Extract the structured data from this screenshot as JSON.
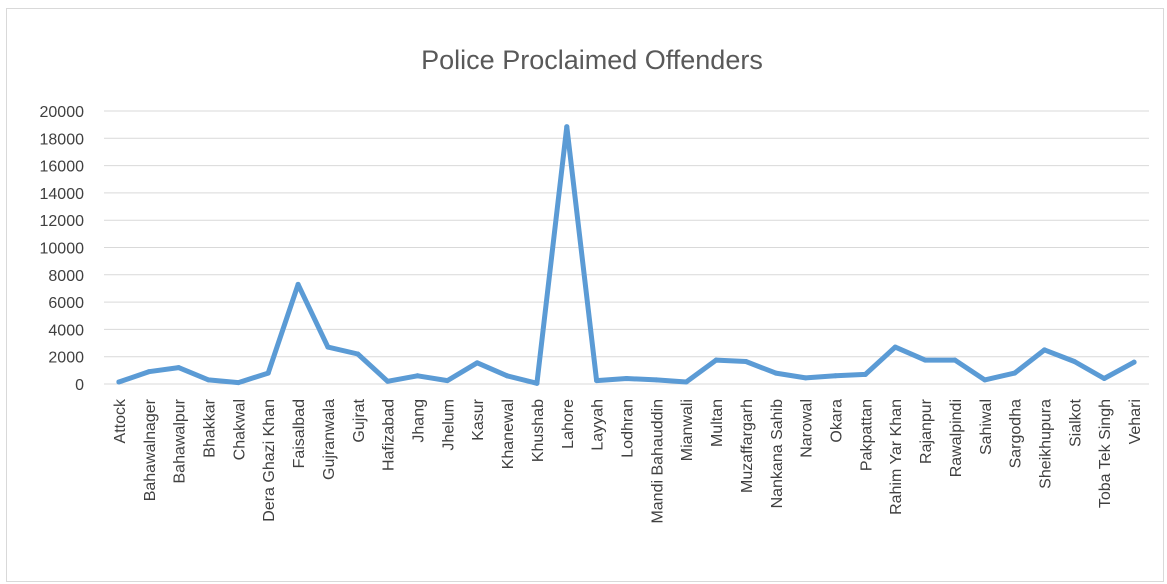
{
  "chart_data": {
    "type": "line",
    "title": "Police Proclaimed Offenders",
    "xlabel": "",
    "ylabel": "",
    "ylim": [
      0,
      20000
    ],
    "yticks": [
      0,
      2000,
      4000,
      6000,
      8000,
      10000,
      12000,
      14000,
      16000,
      18000,
      20000
    ],
    "grid": true,
    "legend": "none",
    "line_color": "#5b9bd5",
    "categories": [
      "Attock",
      "Bahawalnager",
      "Bahawalpur",
      "Bhakkar",
      "Chakwal",
      "Dera Ghazi Khan",
      "Faisalbad",
      "Gujranwala",
      "Gujrat",
      "Hafizabad",
      "Jhang",
      "Jhelum",
      "Kasur",
      "Khanewal",
      "Khushab",
      "Lahore",
      "Layyah",
      "Lodhran",
      "Mandi Bahauddin",
      "Mianwali",
      "Multan",
      "Muzaffargarh",
      "Nankana Sahib",
      "Narowal",
      "Okara",
      "Pakpattan",
      "Rahim Yar Khan",
      "Rajanpur",
      "Rawalpindi",
      "Sahiwal",
      "Sargodha",
      "Sheikhupura",
      "Sialkot",
      "Toba Tek Singh",
      "Vehari"
    ],
    "series": [
      {
        "values": [
          150,
          900,
          1200,
          300,
          100,
          800,
          7300,
          2700,
          2200,
          200,
          600,
          250,
          1550,
          600,
          50,
          18850,
          250,
          400,
          300,
          150,
          1750,
          1650,
          800,
          450,
          600,
          700,
          2700,
          1750,
          1750,
          300,
          800,
          2500,
          1650,
          400,
          1600
        ]
      }
    ]
  }
}
